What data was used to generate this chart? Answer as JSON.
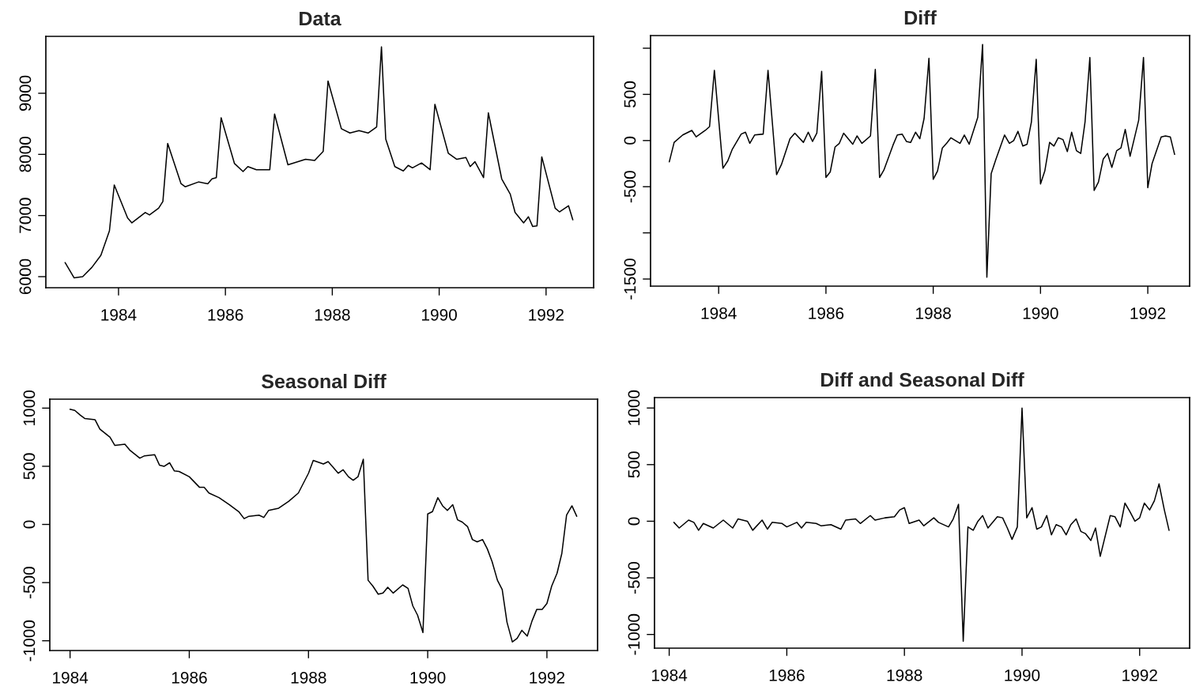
{
  "chart_data": [
    {
      "type": "line",
      "title": "Data",
      "color": "#000000",
      "xlim": [
        1982.64,
        1992.89
      ],
      "ylim": [
        5819,
        9931
      ],
      "xticks": [
        1984,
        1986,
        1988,
        1990,
        1992
      ],
      "yticks": [
        6000,
        7000,
        8000,
        9000
      ],
      "x": [
        1983.0,
        1983.17,
        1983.33,
        1983.5,
        1983.67,
        1983.83,
        1983.92,
        1984.17,
        1984.25,
        1984.5,
        1984.58,
        1984.75,
        1984.83,
        1984.92,
        1985.17,
        1985.25,
        1985.5,
        1985.67,
        1985.75,
        1985.83,
        1985.92,
        1986.17,
        1986.33,
        1986.42,
        1986.58,
        1986.83,
        1986.92,
        1987.17,
        1987.5,
        1987.67,
        1987.83,
        1987.92,
        1988.17,
        1988.33,
        1988.5,
        1988.67,
        1988.83,
        1988.92,
        1989.0,
        1989.17,
        1989.33,
        1989.42,
        1989.5,
        1989.67,
        1989.83,
        1989.92,
        1990.17,
        1990.33,
        1990.5,
        1990.58,
        1990.67,
        1990.83,
        1990.92,
        1991.17,
        1991.33,
        1991.42,
        1991.58,
        1991.67,
        1991.75,
        1991.83,
        1991.92,
        1992.17,
        1992.25,
        1992.42,
        1992.5
      ],
      "values": [
        6230,
        5980,
        6000,
        6150,
        6350,
        6750,
        7500,
        6960,
        6880,
        7050,
        7010,
        7120,
        7230,
        8180,
        7520,
        7470,
        7550,
        7520,
        7600,
        7620,
        8600,
        7850,
        7720,
        7800,
        7750,
        7750,
        8660,
        7830,
        7920,
        7900,
        8050,
        9200,
        8420,
        8350,
        8390,
        8350,
        8450,
        9760,
        8250,
        7800,
        7730,
        7820,
        7780,
        7860,
        7750,
        8820,
        8020,
        7920,
        7950,
        7800,
        7880,
        7620,
        8680,
        7600,
        7350,
        7050,
        6880,
        6980,
        6820,
        6830,
        7960,
        7120,
        7060,
        7160,
        6930
      ]
    },
    {
      "type": "line",
      "title": "Diff",
      "color": "#000000",
      "xlim": [
        1982.73,
        1992.78
      ],
      "ylim": [
        -1577,
        1137
      ],
      "xticks": [
        1984,
        1986,
        1988,
        1990,
        1992
      ],
      "yticks": [
        {
          "value": 1000,
          "label": null
        },
        500,
        0,
        -500,
        {
          "value": -1000,
          "label": null
        },
        -1500
      ],
      "x": [
        1983.08,
        1983.17,
        1983.33,
        1983.5,
        1983.58,
        1983.75,
        1983.83,
        1983.92,
        1984.0,
        1984.08,
        1984.17,
        1984.25,
        1984.42,
        1984.5,
        1984.58,
        1984.67,
        1984.83,
        1984.92,
        1985.0,
        1985.08,
        1985.17,
        1985.33,
        1985.42,
        1985.58,
        1985.67,
        1985.75,
        1985.83,
        1985.92,
        1986.0,
        1986.08,
        1986.17,
        1986.25,
        1986.33,
        1986.5,
        1986.58,
        1986.67,
        1986.83,
        1986.92,
        1987.0,
        1987.08,
        1987.25,
        1987.33,
        1987.42,
        1987.5,
        1987.58,
        1987.67,
        1987.75,
        1987.83,
        1987.92,
        1988.0,
        1988.08,
        1988.17,
        1988.25,
        1988.33,
        1988.5,
        1988.58,
        1988.67,
        1988.83,
        1988.92,
        1989.0,
        1989.08,
        1989.17,
        1989.33,
        1989.42,
        1989.5,
        1989.58,
        1989.67,
        1989.75,
        1989.83,
        1989.92,
        1990.0,
        1990.08,
        1990.17,
        1990.25,
        1990.33,
        1990.42,
        1990.5,
        1990.58,
        1990.67,
        1990.75,
        1990.83,
        1990.92,
        1991.0,
        1991.08,
        1991.17,
        1991.25,
        1991.33,
        1991.42,
        1991.5,
        1991.58,
        1991.67,
        1991.83,
        1991.92,
        1992.0,
        1992.08,
        1992.25,
        1992.33,
        1992.42,
        1992.5
      ],
      "values": [
        -230,
        -20,
        60,
        110,
        40,
        110,
        150,
        760,
        230,
        -300,
        -220,
        -100,
        70,
        90,
        -30,
        60,
        70,
        760,
        200,
        -370,
        -260,
        20,
        80,
        -20,
        90,
        -10,
        80,
        750,
        -400,
        -340,
        -70,
        -30,
        80,
        -40,
        50,
        -30,
        50,
        770,
        -400,
        -320,
        -50,
        60,
        70,
        -10,
        -20,
        90,
        20,
        240,
        890,
        -420,
        -330,
        -80,
        -30,
        30,
        -30,
        60,
        -40,
        250,
        1040,
        -1480,
        -360,
        -200,
        60,
        -30,
        0,
        100,
        -60,
        -40,
        200,
        880,
        -470,
        -330,
        -20,
        -60,
        30,
        10,
        -120,
        90,
        -110,
        -140,
        200,
        900,
        -540,
        -450,
        -200,
        -140,
        -290,
        -110,
        -80,
        120,
        -170,
        220,
        900,
        -510,
        -250,
        40,
        50,
        40,
        -150
      ]
    },
    {
      "type": "line",
      "title": "Seasonal Diff",
      "color": "#000000",
      "xlim": [
        1983.66,
        1992.85
      ],
      "ylim": [
        -1084,
        1077
      ],
      "xticks": [
        1984,
        1986,
        1988,
        1990,
        1992
      ],
      "yticks": [
        -1000,
        -500,
        0,
        500,
        1000
      ],
      "x": [
        1984.0,
        1984.08,
        1984.17,
        1984.25,
        1984.42,
        1984.5,
        1984.67,
        1984.75,
        1984.92,
        1985.0,
        1985.17,
        1985.25,
        1985.42,
        1985.5,
        1985.58,
        1985.67,
        1985.75,
        1985.83,
        1986.0,
        1986.17,
        1986.25,
        1986.33,
        1986.5,
        1986.67,
        1986.83,
        1986.92,
        1987.0,
        1987.17,
        1987.25,
        1987.33,
        1987.5,
        1987.67,
        1987.83,
        1988.0,
        1988.08,
        1988.25,
        1988.33,
        1988.5,
        1988.58,
        1988.67,
        1988.75,
        1988.83,
        1988.92,
        1989.0,
        1989.08,
        1989.17,
        1989.25,
        1989.33,
        1989.42,
        1989.58,
        1989.67,
        1989.75,
        1989.83,
        1989.92,
        1990.0,
        1990.08,
        1990.17,
        1990.25,
        1990.33,
        1990.42,
        1990.5,
        1990.58,
        1990.67,
        1990.75,
        1990.83,
        1990.92,
        1991.0,
        1991.08,
        1991.17,
        1991.25,
        1991.33,
        1991.42,
        1991.5,
        1991.58,
        1991.67,
        1991.75,
        1991.83,
        1991.92,
        1992.0,
        1992.08,
        1992.17,
        1992.25,
        1992.33,
        1992.42,
        1992.5
      ],
      "values": [
        990,
        980,
        940,
        910,
        900,
        820,
        750,
        680,
        690,
        640,
        570,
        590,
        600,
        510,
        500,
        530,
        460,
        455,
        410,
        320,
        320,
        270,
        230,
        170,
        110,
        50,
        70,
        80,
        60,
        120,
        140,
        200,
        270,
        440,
        550,
        520,
        540,
        440,
        470,
        410,
        380,
        410,
        560,
        -480,
        -530,
        -600,
        -590,
        -540,
        -590,
        -520,
        -550,
        -700,
        -780,
        -930,
        90,
        110,
        230,
        160,
        120,
        170,
        40,
        20,
        -20,
        -130,
        -150,
        -130,
        -210,
        -320,
        -480,
        -560,
        -840,
        -1010,
        -980,
        -910,
        -960,
        -830,
        -730,
        -730,
        -680,
        -530,
        -420,
        -250,
        80,
        160,
        70
      ]
    },
    {
      "type": "line",
      "title": "Diff and Seasonal Diff",
      "color": "#000000",
      "xlim": [
        1983.75,
        1992.85
      ],
      "ylim": [
        -1121,
        1092
      ],
      "xticks": [
        1984,
        1986,
        1988,
        1990,
        1992
      ],
      "yticks": [
        -1000,
        -500,
        0,
        500,
        1000
      ],
      "x": [
        1984.08,
        1984.17,
        1984.33,
        1984.42,
        1984.5,
        1984.58,
        1984.75,
        1984.92,
        1985.08,
        1985.17,
        1985.33,
        1985.42,
        1985.58,
        1985.67,
        1985.75,
        1985.92,
        1986.0,
        1986.17,
        1986.25,
        1986.33,
        1986.5,
        1986.58,
        1986.75,
        1986.92,
        1987.0,
        1987.17,
        1987.25,
        1987.42,
        1987.5,
        1987.67,
        1987.83,
        1987.92,
        1988.0,
        1988.08,
        1988.25,
        1988.33,
        1988.5,
        1988.58,
        1988.75,
        1988.83,
        1988.92,
        1989.0,
        1989.08,
        1989.17,
        1989.25,
        1989.33,
        1989.42,
        1989.58,
        1989.67,
        1989.75,
        1989.83,
        1989.92,
        1990.0,
        1990.08,
        1990.17,
        1990.25,
        1990.33,
        1990.42,
        1990.5,
        1990.58,
        1990.67,
        1990.75,
        1990.83,
        1990.92,
        1991.0,
        1991.08,
        1991.17,
        1991.25,
        1991.33,
        1991.5,
        1991.58,
        1991.67,
        1991.75,
        1991.83,
        1991.92,
        1992.0,
        1992.08,
        1992.17,
        1992.25,
        1992.33,
        1992.42,
        1992.5
      ],
      "values": [
        -10,
        -60,
        10,
        -10,
        -80,
        -20,
        -60,
        10,
        -60,
        20,
        0,
        -80,
        10,
        -70,
        -10,
        -20,
        -50,
        -10,
        -60,
        -10,
        -20,
        -40,
        -30,
        -70,
        10,
        20,
        -20,
        50,
        10,
        30,
        40,
        100,
        120,
        -20,
        10,
        -40,
        30,
        -10,
        -50,
        20,
        150,
        -1060,
        -50,
        -80,
        0,
        50,
        -60,
        40,
        30,
        -60,
        -160,
        -50,
        1000,
        30,
        120,
        -70,
        -50,
        50,
        -120,
        -30,
        -50,
        -120,
        -30,
        20,
        -90,
        -110,
        -170,
        -60,
        -310,
        50,
        40,
        -50,
        160,
        90,
        0,
        30,
        160,
        100,
        180,
        330,
        100,
        -80
      ]
    }
  ]
}
